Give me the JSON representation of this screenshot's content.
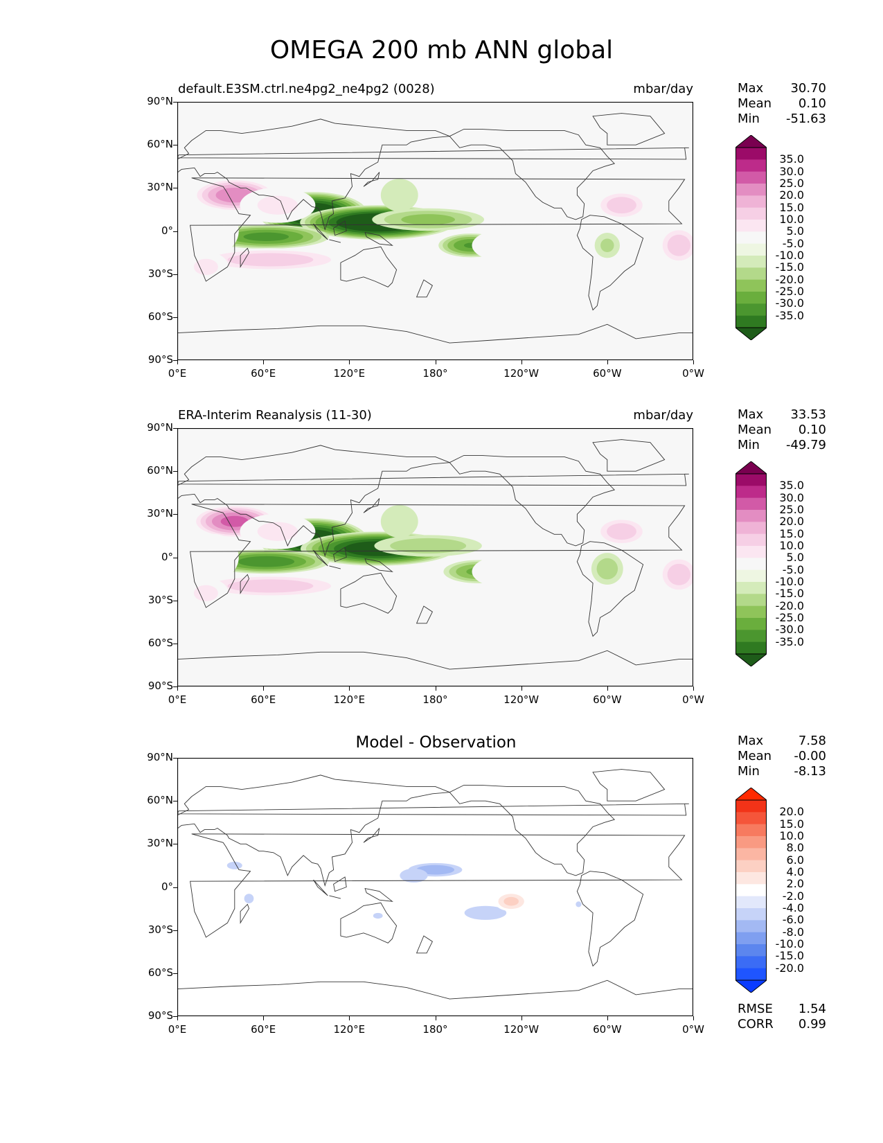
{
  "figure": {
    "title": "OMEGA 200 mb ANN global"
  },
  "axes": {
    "yticks": [
      "90°N",
      "60°N",
      "30°N",
      "0°",
      "30°S",
      "60°S",
      "90°S"
    ],
    "xticks": [
      "0°E",
      "60°E",
      "120°E",
      "180°",
      "120°W",
      "60°W",
      "0°W"
    ]
  },
  "panels": [
    {
      "title_left": "default.E3SM.ctrl.ne4pg2_ne4pg2 (0028)",
      "title_right": "mbar/day",
      "stats": [
        {
          "label": "Max",
          "value": "30.70"
        },
        {
          "label": "Mean",
          "value": "0.10"
        },
        {
          "label": "Min",
          "value": "-51.63"
        }
      ],
      "colorbar": {
        "colors": [
          "#1e5c19",
          "#2f7a21",
          "#4b962f",
          "#6aae3d",
          "#8fc45a",
          "#b3d98a",
          "#d4ebba",
          "#eef6e2",
          "#f7f7f7",
          "#fbe6f1",
          "#f6cfe5",
          "#efb3d6",
          "#e38dc2",
          "#d25aa7",
          "#bd2b8a",
          "#9b0b68",
          "#7a0050"
        ],
        "labels": [
          "35.0",
          "30.0",
          "25.0",
          "20.0",
          "15.0",
          "10.0",
          "5.0",
          "-5.0",
          "-10.0",
          "-15.0",
          "-20.0",
          "-25.0",
          "-30.0",
          "-35.0"
        ]
      }
    },
    {
      "title_left": "ERA-Interim Reanalysis (11-30)",
      "title_right": "mbar/day",
      "stats": [
        {
          "label": "Max",
          "value": "33.53"
        },
        {
          "label": "Mean",
          "value": "0.10"
        },
        {
          "label": "Min",
          "value": "-49.79"
        }
      ],
      "colorbar": {
        "colors": [
          "#1e5c19",
          "#2f7a21",
          "#4b962f",
          "#6aae3d",
          "#8fc45a",
          "#b3d98a",
          "#d4ebba",
          "#eef6e2",
          "#f7f7f7",
          "#fbe6f1",
          "#f6cfe5",
          "#efb3d6",
          "#e38dc2",
          "#d25aa7",
          "#bd2b8a",
          "#9b0b68",
          "#7a0050"
        ],
        "labels": [
          "35.0",
          "30.0",
          "25.0",
          "20.0",
          "15.0",
          "10.0",
          "5.0",
          "-5.0",
          "-10.0",
          "-15.0",
          "-20.0",
          "-25.0",
          "-30.0",
          "-35.0"
        ]
      }
    },
    {
      "title_center": "Model - Observation",
      "stats": [
        {
          "label": "Max",
          "value": "7.58"
        },
        {
          "label": "Mean",
          "value": "-0.00"
        },
        {
          "label": "Min",
          "value": "-8.13"
        }
      ],
      "colorbar": {
        "colors": [
          "#0a3cff",
          "#1f55ff",
          "#3b6cf5",
          "#5c86ee",
          "#7f9ff0",
          "#a3b9f3",
          "#c6d3f8",
          "#e2e8fb",
          "#ffffff",
          "#fde7e1",
          "#fcd0c3",
          "#fbb6a3",
          "#f99a82",
          "#f77a5f",
          "#f5553a",
          "#f23318",
          "#ff2a00"
        ],
        "labels": [
          "20.0",
          "15.0",
          "10.0",
          "8.0",
          "6.0",
          "4.0",
          "2.0",
          "-2.0",
          "-4.0",
          "-6.0",
          "-8.0",
          "-10.0",
          "-15.0",
          "-20.0"
        ]
      },
      "metrics": [
        {
          "label": "RMSE",
          "value": "1.54"
        },
        {
          "label": "CORR",
          "value": "0.99"
        }
      ]
    }
  ],
  "chart_data": [
    {
      "type": "heatmap",
      "title": "default.E3SM.ctrl.ne4pg2_ne4pg2 (0028)",
      "units": "mbar/day",
      "xlim": [
        0,
        360
      ],
      "ylim": [
        -90,
        90
      ],
      "levels": [
        -35,
        -30,
        -25,
        -20,
        -15,
        -10,
        -5,
        5,
        10,
        15,
        20,
        25,
        30,
        35
      ],
      "features": [
        {
          "kind": "min",
          "lon": 145,
          "lat": 5,
          "value": -45
        },
        {
          "kind": "min",
          "lon": 95,
          "lat": 12,
          "value": -40
        },
        {
          "kind": "min",
          "lon": 60,
          "lat": -5,
          "value": -25
        },
        {
          "kind": "min",
          "lon": 205,
          "lat": -10,
          "value": -25
        },
        {
          "kind": "max",
          "lon": 40,
          "lat": 25,
          "value": 30
        },
        {
          "kind": "max",
          "lon": 310,
          "lat": 18,
          "value": 20
        },
        {
          "kind": "max",
          "lon": 65,
          "lat": -20,
          "value": 20
        },
        {
          "kind": "max",
          "lon": 345,
          "lat": -10,
          "value": 20
        }
      ]
    },
    {
      "type": "heatmap",
      "title": "ERA-Interim Reanalysis (11-30)",
      "units": "mbar/day",
      "xlim": [
        0,
        360
      ],
      "ylim": [
        -90,
        90
      ],
      "levels": [
        -35,
        -30,
        -25,
        -20,
        -15,
        -10,
        -5,
        5,
        10,
        15,
        20,
        25,
        30,
        35
      ],
      "features": [
        {
          "kind": "min",
          "lon": 145,
          "lat": 5,
          "value": -42
        },
        {
          "kind": "min",
          "lon": 95,
          "lat": 12,
          "value": -40
        },
        {
          "kind": "min",
          "lon": 60,
          "lat": -3,
          "value": -28
        },
        {
          "kind": "min",
          "lon": 215,
          "lat": -10,
          "value": -22
        },
        {
          "kind": "max",
          "lon": 40,
          "lat": 25,
          "value": 32
        },
        {
          "kind": "max",
          "lon": 310,
          "lat": 18,
          "value": 20
        },
        {
          "kind": "max",
          "lon": 65,
          "lat": -20,
          "value": 20
        },
        {
          "kind": "max",
          "lon": 345,
          "lat": -12,
          "value": 20
        }
      ]
    },
    {
      "type": "heatmap",
      "title": "Model - Observation",
      "xlim": [
        0,
        360
      ],
      "ylim": [
        -90,
        90
      ],
      "levels": [
        -20,
        -15,
        -10,
        -8,
        -6,
        -4,
        -2,
        2,
        4,
        6,
        8,
        10,
        15,
        20
      ],
      "features": [
        {
          "kind": "min",
          "lon": 180,
          "lat": 12,
          "value": -6
        },
        {
          "kind": "min",
          "lon": 215,
          "lat": -18,
          "value": -4
        },
        {
          "kind": "min",
          "lon": 40,
          "lat": 15,
          "value": -3
        },
        {
          "kind": "max",
          "lon": 233,
          "lat": -10,
          "value": 7
        },
        {
          "kind": "max",
          "lon": 190,
          "lat": 0,
          "value": 4
        },
        {
          "kind": "max",
          "lon": 305,
          "lat": 0,
          "value": 3
        },
        {
          "kind": "max",
          "lon": 70,
          "lat": -10,
          "value": 3
        },
        {
          "kind": "max",
          "lon": 210,
          "lat": 18,
          "value": 3
        }
      ]
    }
  ]
}
